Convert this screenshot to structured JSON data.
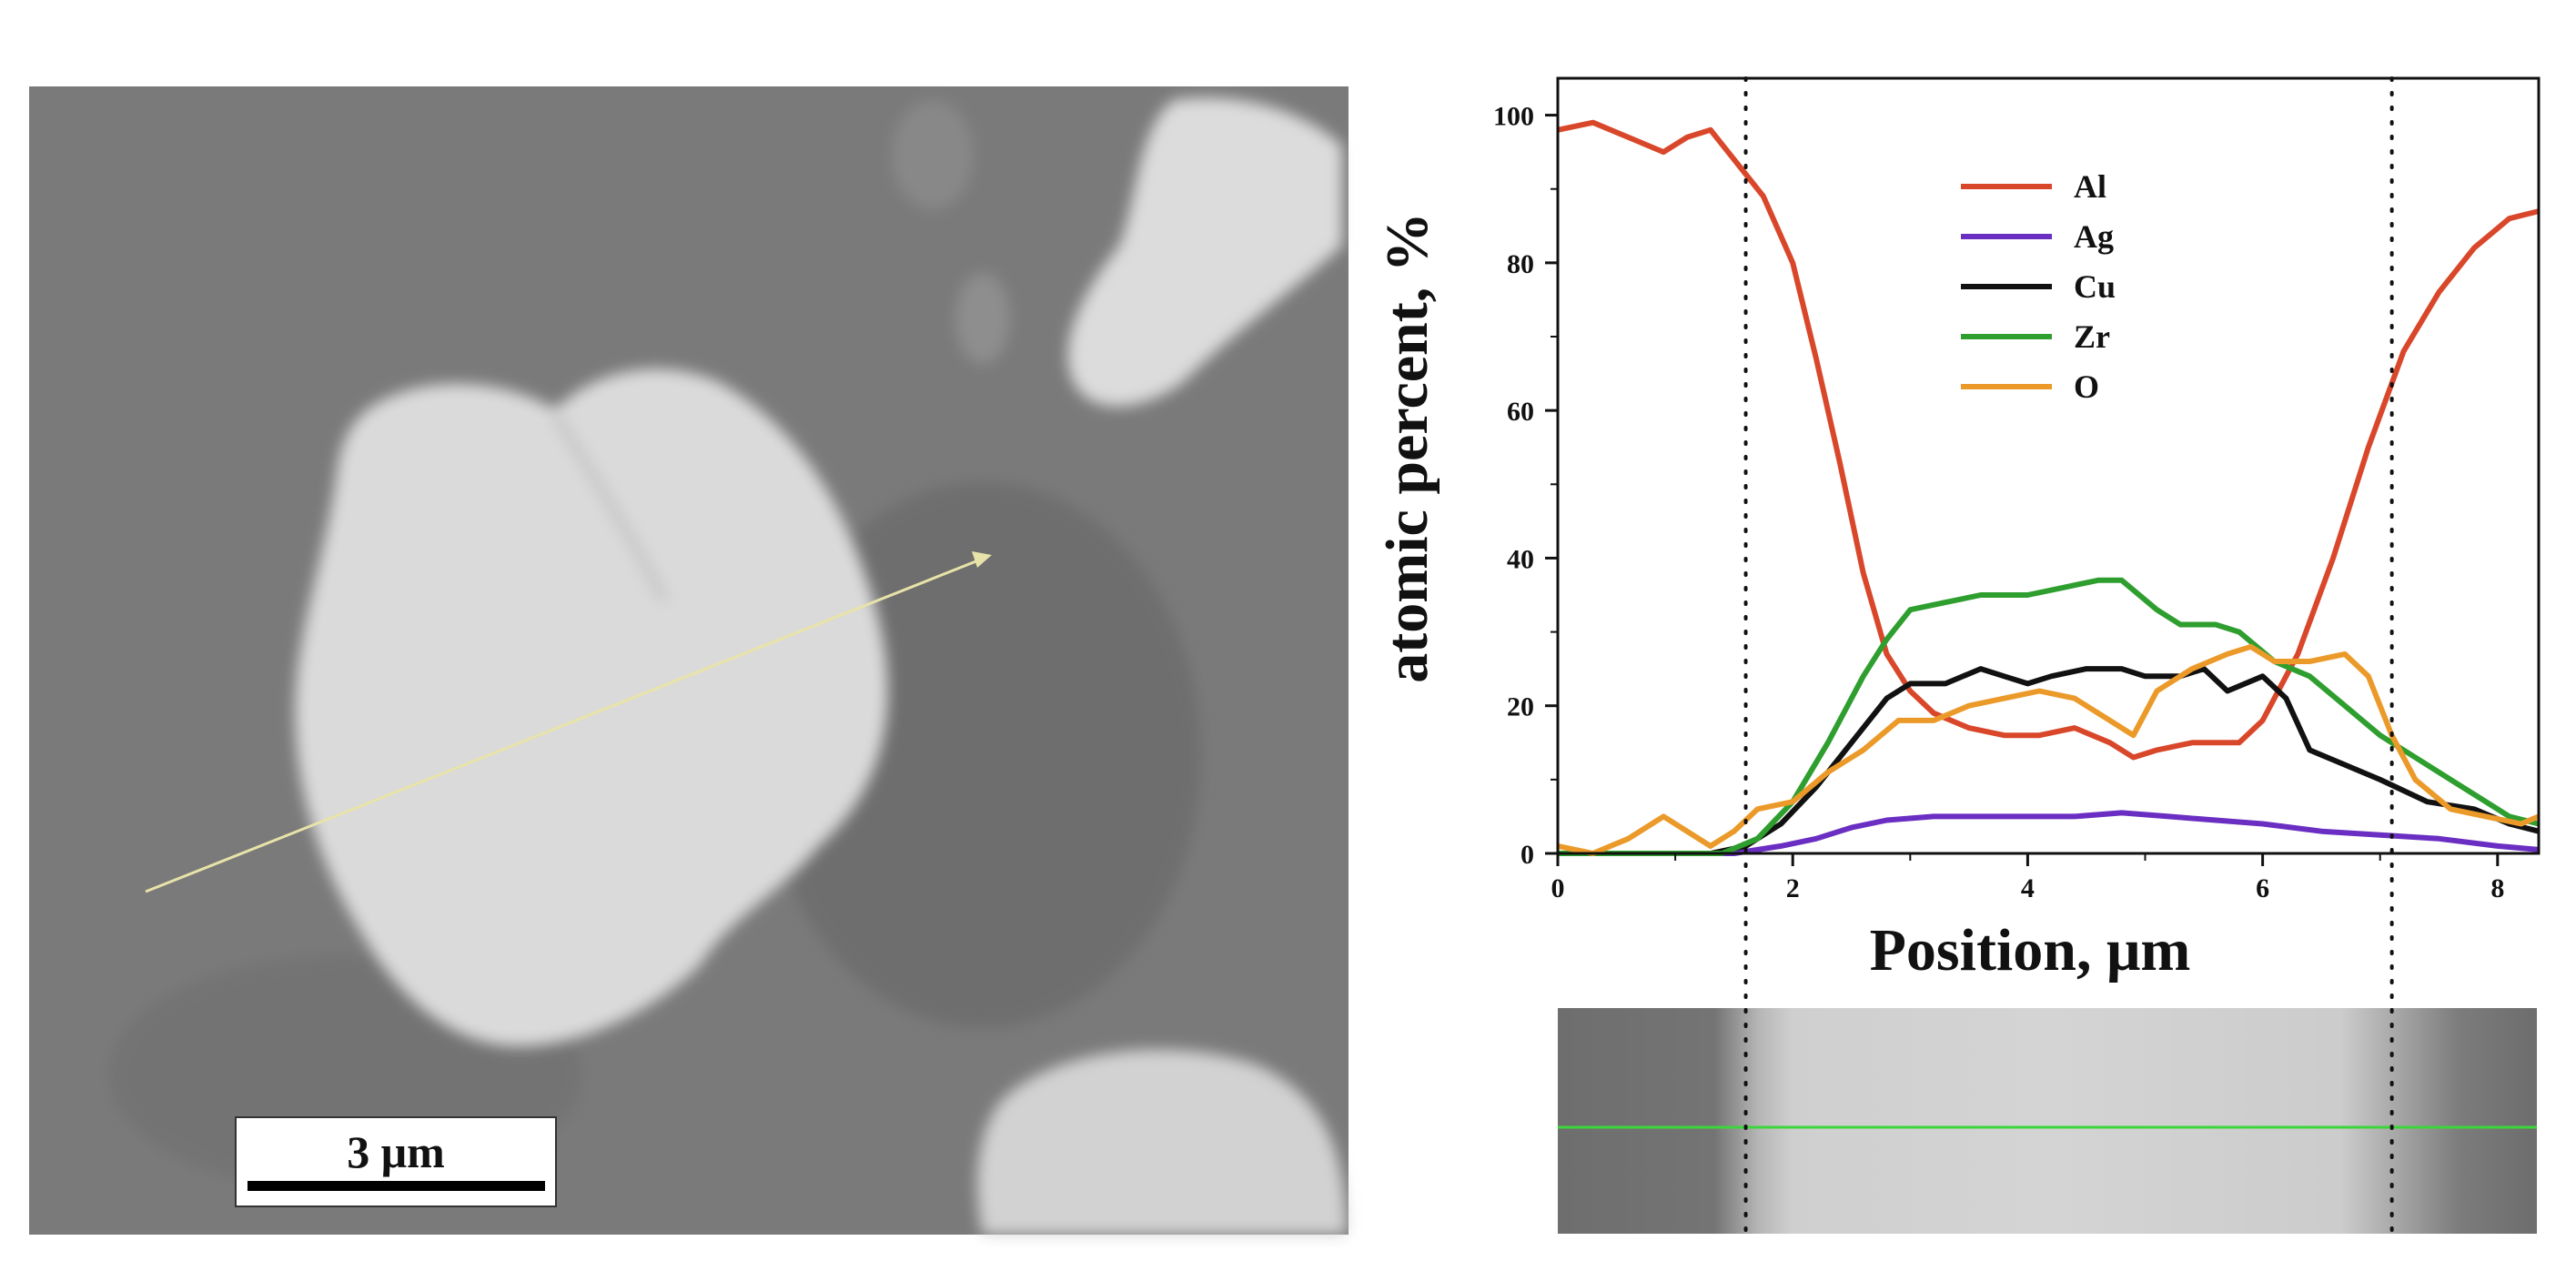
{
  "micrograph": {
    "scale_bar_label": "3 μm",
    "scan_line_color": "#e8e3a8"
  },
  "chart_data": {
    "type": "line",
    "xlabel": "Position, μm",
    "ylabel": "atomic percent, %",
    "xlim": [
      0,
      8.35
    ],
    "ylim": [
      0,
      105
    ],
    "x_ticks": [
      0,
      2,
      4,
      6,
      8
    ],
    "y_ticks": [
      0,
      20,
      40,
      60,
      80,
      100
    ],
    "x_tick_labels": [
      "0",
      "2",
      "4",
      "6",
      "8"
    ],
    "y_tick_labels": [
      "0",
      "20",
      "40",
      "60",
      "80",
      "100"
    ],
    "grid": false,
    "legend_position": "top-center",
    "dotted_markers_x": [
      1.6,
      7.1
    ],
    "series": [
      {
        "name": "Al",
        "color": "#d9472b",
        "points": [
          [
            0,
            98
          ],
          [
            0.3,
            99
          ],
          [
            0.6,
            97
          ],
          [
            0.9,
            95
          ],
          [
            1.1,
            97
          ],
          [
            1.3,
            98
          ],
          [
            1.5,
            94
          ],
          [
            1.75,
            89
          ],
          [
            2.0,
            80
          ],
          [
            2.2,
            67
          ],
          [
            2.4,
            53
          ],
          [
            2.6,
            38
          ],
          [
            2.8,
            27
          ],
          [
            3.0,
            22
          ],
          [
            3.2,
            19
          ],
          [
            3.5,
            17
          ],
          [
            3.8,
            16
          ],
          [
            4.1,
            16
          ],
          [
            4.4,
            17
          ],
          [
            4.7,
            15
          ],
          [
            4.9,
            13
          ],
          [
            5.1,
            14
          ],
          [
            5.4,
            15
          ],
          [
            5.8,
            15
          ],
          [
            6.0,
            18
          ],
          [
            6.3,
            27
          ],
          [
            6.6,
            40
          ],
          [
            6.9,
            55
          ],
          [
            7.2,
            68
          ],
          [
            7.5,
            76
          ],
          [
            7.8,
            82
          ],
          [
            8.1,
            86
          ],
          [
            8.35,
            87
          ]
        ]
      },
      {
        "name": "Ag",
        "color": "#6a2fc2",
        "points": [
          [
            0,
            0
          ],
          [
            1.0,
            0
          ],
          [
            1.5,
            0
          ],
          [
            1.9,
            1
          ],
          [
            2.2,
            2
          ],
          [
            2.5,
            3.5
          ],
          [
            2.8,
            4.5
          ],
          [
            3.2,
            5
          ],
          [
            3.6,
            5
          ],
          [
            4.0,
            5
          ],
          [
            4.4,
            5
          ],
          [
            4.8,
            5.5
          ],
          [
            5.2,
            5
          ],
          [
            5.6,
            4.5
          ],
          [
            6.0,
            4
          ],
          [
            6.5,
            3
          ],
          [
            7.0,
            2.5
          ],
          [
            7.5,
            2
          ],
          [
            8.0,
            1
          ],
          [
            8.35,
            0.5
          ]
        ]
      },
      {
        "name": "Cu",
        "color": "#111111",
        "points": [
          [
            0,
            0
          ],
          [
            0.8,
            0
          ],
          [
            1.3,
            0
          ],
          [
            1.6,
            1
          ],
          [
            1.9,
            4
          ],
          [
            2.2,
            9
          ],
          [
            2.5,
            15
          ],
          [
            2.8,
            21
          ],
          [
            3.0,
            23
          ],
          [
            3.3,
            23
          ],
          [
            3.6,
            25
          ],
          [
            3.8,
            24
          ],
          [
            4.0,
            23
          ],
          [
            4.2,
            24
          ],
          [
            4.5,
            25
          ],
          [
            4.8,
            25
          ],
          [
            5.0,
            24
          ],
          [
            5.3,
            24
          ],
          [
            5.5,
            25
          ],
          [
            5.7,
            22
          ],
          [
            6.0,
            24
          ],
          [
            6.2,
            21
          ],
          [
            6.4,
            14
          ],
          [
            6.7,
            12
          ],
          [
            7.0,
            10
          ],
          [
            7.4,
            7
          ],
          [
            7.8,
            6
          ],
          [
            8.1,
            4
          ],
          [
            8.35,
            3
          ]
        ]
      },
      {
        "name": "Zr",
        "color": "#2e9e2e",
        "points": [
          [
            0,
            0
          ],
          [
            0.8,
            0
          ],
          [
            1.4,
            0
          ],
          [
            1.7,
            2
          ],
          [
            2.0,
            7
          ],
          [
            2.3,
            15
          ],
          [
            2.6,
            24
          ],
          [
            2.8,
            29
          ],
          [
            3.0,
            33
          ],
          [
            3.3,
            34
          ],
          [
            3.6,
            35
          ],
          [
            4.0,
            35
          ],
          [
            4.3,
            36
          ],
          [
            4.6,
            37
          ],
          [
            4.8,
            37
          ],
          [
            5.1,
            33
          ],
          [
            5.3,
            31
          ],
          [
            5.6,
            31
          ],
          [
            5.8,
            30
          ],
          [
            6.1,
            26
          ],
          [
            6.4,
            24
          ],
          [
            6.7,
            20
          ],
          [
            7.0,
            16
          ],
          [
            7.3,
            13
          ],
          [
            7.6,
            10
          ],
          [
            7.9,
            7
          ],
          [
            8.1,
            5
          ],
          [
            8.35,
            4
          ]
        ]
      },
      {
        "name": "O",
        "color": "#eb9a2a",
        "points": [
          [
            0,
            1
          ],
          [
            0.3,
            0
          ],
          [
            0.6,
            2
          ],
          [
            0.9,
            5
          ],
          [
            1.1,
            3
          ],
          [
            1.3,
            1
          ],
          [
            1.5,
            3
          ],
          [
            1.7,
            6
          ],
          [
            2.0,
            7
          ],
          [
            2.3,
            11
          ],
          [
            2.6,
            14
          ],
          [
            2.9,
            18
          ],
          [
            3.2,
            18
          ],
          [
            3.5,
            20
          ],
          [
            3.8,
            21
          ],
          [
            4.1,
            22
          ],
          [
            4.4,
            21
          ],
          [
            4.7,
            18
          ],
          [
            4.9,
            16
          ],
          [
            5.1,
            22
          ],
          [
            5.4,
            25
          ],
          [
            5.7,
            27
          ],
          [
            5.9,
            28
          ],
          [
            6.1,
            26
          ],
          [
            6.4,
            26
          ],
          [
            6.7,
            27
          ],
          [
            6.9,
            24
          ],
          [
            7.1,
            16
          ],
          [
            7.3,
            10
          ],
          [
            7.6,
            6
          ],
          [
            7.9,
            5
          ],
          [
            8.2,
            4
          ],
          [
            8.35,
            5
          ]
        ]
      }
    ]
  }
}
